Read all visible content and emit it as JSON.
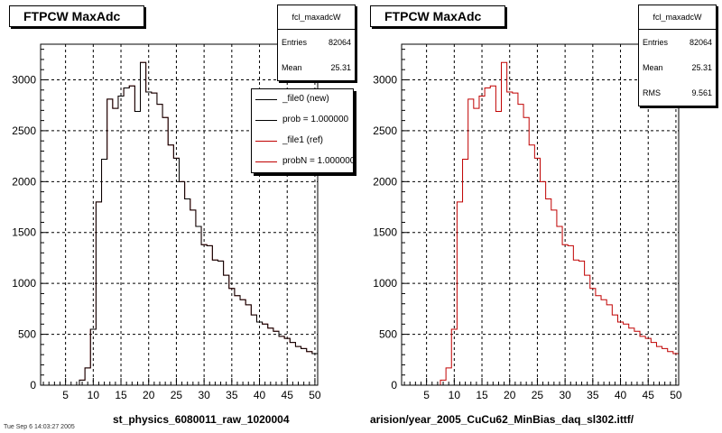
{
  "chart_data": [
    {
      "type": "histogram",
      "title": "FTPCW MaxAdc",
      "xlabel": "st_physics_6080011_raw_1020004",
      "xlim": [
        0.5,
        50.5
      ],
      "ylim": [
        0,
        3350
      ],
      "xticks": [
        5,
        10,
        15,
        20,
        25,
        30,
        35,
        40,
        45,
        50
      ],
      "yticks": [
        0,
        500,
        1000,
        1500,
        2000,
        2500,
        3000
      ],
      "grid": true,
      "bin_centers": [
        1,
        2,
        3,
        4,
        5,
        6,
        7,
        8,
        9,
        10,
        11,
        12,
        13,
        14,
        15,
        16,
        17,
        18,
        19,
        20,
        21,
        22,
        23,
        24,
        25,
        26,
        27,
        28,
        29,
        30,
        31,
        32,
        33,
        34,
        35,
        36,
        37,
        38,
        39,
        40,
        41,
        42,
        43,
        44,
        45,
        46,
        47,
        48,
        49,
        50
      ],
      "series": [
        {
          "values": [
            0,
            0,
            0,
            0,
            0,
            0,
            0,
            50,
            170,
            550,
            1800,
            2220,
            2810,
            2720,
            2840,
            2920,
            2940,
            2690,
            3170,
            2880,
            2870,
            2760,
            2630,
            2360,
            2230,
            2000,
            1830,
            1720,
            1560,
            1380,
            1370,
            1230,
            1220,
            1080,
            950,
            880,
            840,
            790,
            690,
            620,
            600,
            560,
            530,
            480,
            460,
            420,
            380,
            360,
            330,
            310
          ],
          "color": "#c00000"
        },
        {
          "values": [
            0,
            0,
            0,
            0,
            0,
            0,
            0,
            50,
            170,
            550,
            1800,
            2220,
            2810,
            2720,
            2840,
            2920,
            2940,
            2690,
            3170,
            2880,
            2870,
            2760,
            2630,
            2360,
            2230,
            2000,
            1830,
            1720,
            1560,
            1380,
            1370,
            1230,
            1220,
            1080,
            950,
            880,
            840,
            790,
            690,
            620,
            600,
            560,
            530,
            480,
            460,
            420,
            380,
            360,
            330,
            310
          ],
          "color": "#000000"
        }
      ],
      "stats": {
        "title": "fcl_maxadcW",
        "rows": [
          {
            "k": "Entries",
            "v": "82064"
          },
          {
            "k": "Mean",
            "v": "25.31"
          }
        ]
      },
      "legend": {
        "placement": "top-right",
        "entries": [
          "_file0 (new)",
          "prob = 1.000000",
          "_file1 (ref)",
          "probN = 1.000000"
        ]
      }
    },
    {
      "type": "histogram",
      "title": "FTPCW MaxAdc",
      "xlabel": "arision/year_2005_CuCu62_MinBias_daq_sl302.ittf/",
      "xlim": [
        0.5,
        50.5
      ],
      "ylim": [
        0,
        3350
      ],
      "xticks": [
        5,
        10,
        15,
        20,
        25,
        30,
        35,
        40,
        45,
        50
      ],
      "yticks": [
        0,
        500,
        1000,
        1500,
        2000,
        2500,
        3000
      ],
      "grid": true,
      "bin_centers": [
        1,
        2,
        3,
        4,
        5,
        6,
        7,
        8,
        9,
        10,
        11,
        12,
        13,
        14,
        15,
        16,
        17,
        18,
        19,
        20,
        21,
        22,
        23,
        24,
        25,
        26,
        27,
        28,
        29,
        30,
        31,
        32,
        33,
        34,
        35,
        36,
        37,
        38,
        39,
        40,
        41,
        42,
        43,
        44,
        45,
        46,
        47,
        48,
        49,
        50
      ],
      "series": [
        {
          "values": [
            0,
            0,
            0,
            0,
            0,
            0,
            0,
            50,
            170,
            550,
            1800,
            2220,
            2810,
            2720,
            2840,
            2920,
            2940,
            2690,
            3170,
            2880,
            2870,
            2760,
            2630,
            2360,
            2230,
            2000,
            1830,
            1720,
            1560,
            1380,
            1370,
            1230,
            1220,
            1080,
            950,
            880,
            840,
            790,
            690,
            620,
            600,
            560,
            530,
            480,
            460,
            420,
            380,
            360,
            330,
            310
          ],
          "color": "#c00000"
        }
      ],
      "stats": {
        "title": "fcl_maxadcW",
        "rows": [
          {
            "k": "Entries",
            "v": "82064"
          },
          {
            "k": "Mean",
            "v": "25.31"
          },
          {
            "k": "RMS",
            "v": "9.561"
          }
        ]
      }
    }
  ],
  "footnote": "Tue Sep 6 14:03:27 2005"
}
